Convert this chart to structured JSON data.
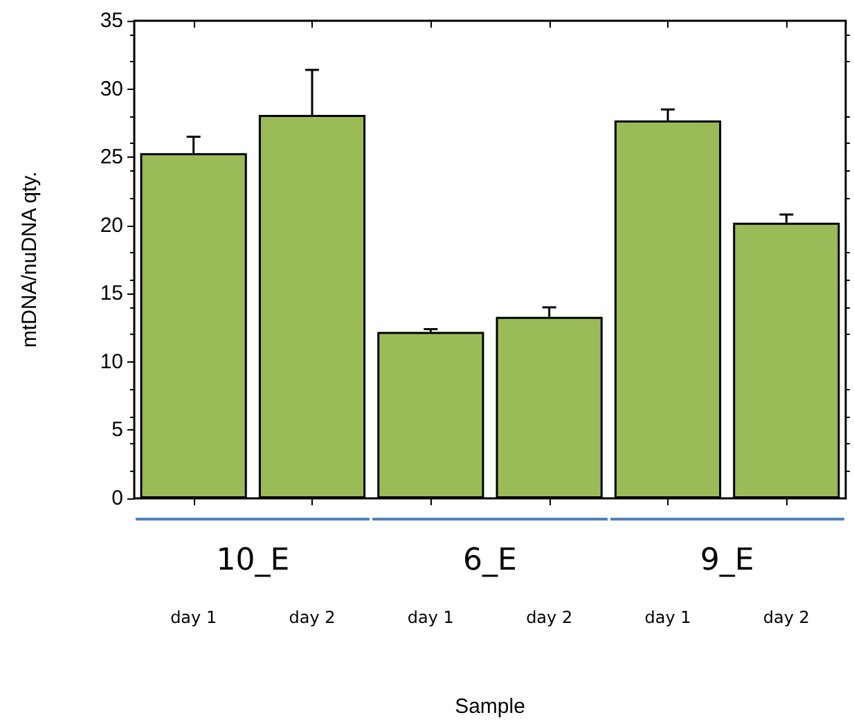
{
  "chart_data": {
    "type": "bar",
    "xlabel": "Sample",
    "ylabel": "mtDNA/nuDNA qty.",
    "categories": [
      "day 1",
      "day 2",
      "day 1",
      "day 2",
      "day 1",
      "day 2"
    ],
    "values": [
      25.3,
      28.1,
      12.2,
      13.3,
      27.7,
      20.2
    ],
    "errors": [
      [
        25.3,
        26.5
      ],
      [
        28.1,
        31.4
      ],
      [
        12.2,
        12.4
      ],
      [
        13.3,
        14.0
      ],
      [
        27.7,
        28.5
      ],
      [
        20.2,
        20.8
      ]
    ],
    "color": "#9bbb59",
    "annotations": [
      "10_E",
      "6_E",
      "9_E"
    ],
    "ylim": [
      0,
      35
    ],
    "yticks": [
      0,
      5,
      10,
      15,
      20,
      25,
      30,
      35
    ],
    "grid": false
  }
}
